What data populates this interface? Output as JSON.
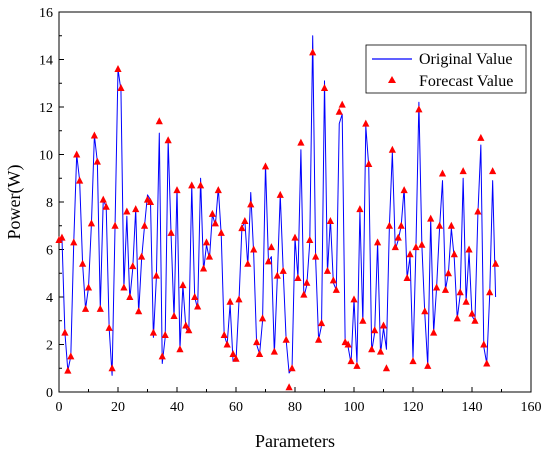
{
  "chart_data": {
    "type": "line",
    "xlabel": "Parameters",
    "ylabel": "Power(W)",
    "xlim": [
      0,
      160
    ],
    "ylim": [
      0,
      16
    ],
    "xticks": [
      0,
      20,
      40,
      60,
      80,
      100,
      120,
      140,
      160
    ],
    "yticks": [
      0,
      2,
      4,
      6,
      8,
      10,
      12,
      14,
      16
    ],
    "legend_position": "top-right",
    "grid": false,
    "x": [
      0,
      1,
      2,
      3,
      4,
      5,
      6,
      7,
      8,
      9,
      10,
      11,
      12,
      13,
      14,
      15,
      16,
      17,
      18,
      19,
      20,
      21,
      22,
      23,
      24,
      25,
      26,
      27,
      28,
      29,
      30,
      31,
      32,
      33,
      34,
      35,
      36,
      37,
      38,
      39,
      40,
      41,
      42,
      43,
      44,
      45,
      46,
      47,
      48,
      49,
      50,
      51,
      52,
      53,
      54,
      55,
      56,
      57,
      58,
      59,
      60,
      61,
      62,
      63,
      64,
      65,
      66,
      67,
      68,
      69,
      70,
      71,
      72,
      73,
      74,
      75,
      76,
      77,
      78,
      79,
      80,
      81,
      82,
      83,
      84,
      85,
      86,
      87,
      88,
      89,
      90,
      91,
      92,
      93,
      94,
      95,
      96,
      97,
      98,
      99,
      100,
      101,
      102,
      103,
      104,
      105,
      106,
      107,
      108,
      109,
      110,
      111,
      112,
      113,
      114,
      115,
      116,
      117,
      118,
      119,
      120,
      121,
      122,
      123,
      124,
      125,
      126,
      127,
      128,
      129,
      130,
      131,
      132,
      133,
      134,
      135,
      136,
      137,
      138,
      139,
      140,
      141,
      142,
      143,
      144,
      145,
      146,
      147,
      148
    ],
    "series": [
      {
        "name": "Original Value",
        "style": "line",
        "color": "#0000ff",
        "values": [
          6.4,
          6.5,
          2.5,
          0.9,
          1.5,
          6.3,
          10.0,
          8.9,
          5.4,
          3.5,
          4.4,
          7.1,
          10.8,
          9.7,
          3.5,
          8.1,
          7.8,
          2.7,
          0.7,
          7.0,
          13.6,
          12.7,
          4.4,
          7.4,
          3.9,
          5.2,
          7.7,
          3.3,
          5.6,
          7.0,
          8.3,
          8.1,
          2.3,
          4.8,
          10.9,
          1.2,
          2.3,
          10.6,
          6.6,
          3.1,
          8.6,
          1.8,
          4.5,
          2.7,
          2.5,
          8.7,
          4.0,
          3.5,
          9.0,
          5.1,
          6.2,
          5.6,
          7.5,
          7.0,
          8.6,
          6.6,
          2.4,
          2.0,
          3.7,
          1.3,
          1.3,
          3.8,
          6.9,
          7.2,
          5.3,
          8.4,
          5.8,
          2.0,
          1.6,
          3.0,
          9.6,
          5.5,
          5.7,
          1.6,
          4.8,
          8.3,
          5.1,
          2.2,
          0.8,
          1.0,
          6.5,
          4.8,
          10.2,
          4.0,
          4.5,
          6.3,
          15.0,
          5.6,
          2.2,
          2.8,
          13.1,
          5.0,
          7.3,
          4.6,
          4.3,
          11.3,
          11.7,
          2.1,
          1.9,
          1.2,
          3.9,
          1.2,
          7.6,
          2.9,
          11.2,
          9.5,
          1.7,
          2.5,
          6.3,
          1.6,
          2.7,
          1.8,
          7.0,
          10.1,
          6.0,
          6.4,
          7.0,
          8.6,
          4.8,
          5.7,
          1.4,
          6.1,
          12.2,
          6.2,
          3.3,
          1.1,
          7.3,
          2.5,
          4.4,
          6.9,
          8.9,
          4.3,
          5.0,
          6.9,
          5.6,
          3.1,
          4.1,
          9.0,
          3.8,
          5.9,
          3.2,
          3.0,
          7.5,
          10.4,
          1.9,
          1.2,
          4.1,
          8.9,
          4.0
        ]
      },
      {
        "name": "Forecast Value",
        "style": "markers",
        "marker": "triangle",
        "color": "#ff0000",
        "values": [
          6.4,
          6.5,
          2.5,
          0.9,
          1.5,
          6.3,
          10.0,
          8.9,
          5.4,
          3.5,
          4.4,
          7.1,
          10.8,
          9.7,
          3.5,
          8.1,
          7.8,
          2.7,
          1.0,
          7.0,
          13.6,
          12.8,
          4.4,
          7.6,
          4.0,
          5.3,
          7.7,
          3.4,
          5.7,
          7.0,
          8.1,
          8.0,
          2.5,
          4.9,
          11.4,
          1.5,
          2.4,
          10.6,
          6.7,
          3.2,
          8.5,
          1.8,
          4.5,
          2.8,
          2.6,
          8.7,
          4.0,
          3.6,
          8.7,
          5.2,
          6.3,
          5.7,
          7.5,
          7.1,
          8.5,
          6.7,
          2.4,
          2.0,
          3.8,
          1.6,
          1.4,
          3.9,
          6.9,
          7.2,
          5.4,
          7.9,
          6.0,
          2.1,
          1.6,
          3.1,
          9.5,
          5.5,
          6.1,
          1.7,
          4.9,
          8.3,
          5.1,
          2.2,
          0.2,
          1.0,
          6.5,
          4.8,
          10.5,
          4.1,
          4.6,
          6.4,
          14.3,
          5.7,
          2.2,
          2.9,
          12.8,
          5.1,
          7.2,
          4.7,
          4.3,
          11.8,
          12.1,
          2.1,
          2.0,
          1.3,
          3.9,
          1.1,
          7.7,
          3.0,
          11.3,
          9.6,
          1.8,
          2.6,
          6.3,
          1.7,
          2.8,
          1.0,
          7.0,
          10.2,
          6.1,
          6.5,
          7.0,
          8.5,
          4.8,
          5.8,
          1.3,
          6.1,
          11.9,
          6.2,
          3.4,
          1.1,
          7.3,
          2.5,
          4.4,
          7.0,
          9.2,
          4.3,
          5.0,
          7.0,
          5.8,
          3.1,
          4.2,
          9.3,
          3.8,
          6.0,
          3.3,
          3.0,
          7.6,
          10.7,
          2.0,
          1.2,
          4.2,
          9.3,
          5.4
        ]
      }
    ]
  }
}
